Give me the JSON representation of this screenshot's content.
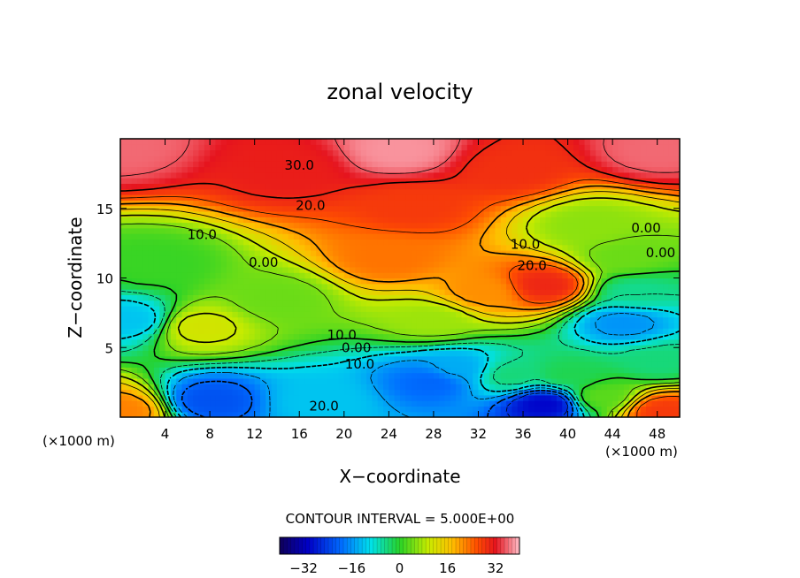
{
  "chart_data": {
    "type": "heatmap",
    "title": "zonal velocity",
    "xlabel": "X−coordinate",
    "ylabel": "Z−coordinate",
    "x_unit_left": "(×1000 m)",
    "x_unit_right": "(×1000 m)",
    "xlim": [
      0,
      50
    ],
    "ylim": [
      0,
      20
    ],
    "x_ticks": [
      4,
      8,
      12,
      16,
      20,
      24,
      28,
      32,
      36,
      40,
      44,
      48
    ],
    "y_ticks": [
      5,
      10,
      15
    ],
    "contour_interval_text": "CONTOUR INTERVAL = 5.000E+00",
    "contour_labels": [
      {
        "text": "30.0",
        "x": 16,
        "z": 18.1
      },
      {
        "text": "20.0",
        "x": 17,
        "z": 15.2
      },
      {
        "text": "10.0",
        "x": 7.3,
        "z": 13.1
      },
      {
        "text": "0.00",
        "x": 12.8,
        "z": 11.1
      },
      {
        "text": "0.00",
        "x": 47,
        "z": 13.6
      },
      {
        "text": "0.00",
        "x": 48.3,
        "z": 11.8
      },
      {
        "text": "10.0",
        "x": 36.2,
        "z": 12.4
      },
      {
        "text": "20.0",
        "x": 36.8,
        "z": 10.9
      },
      {
        "text": "10.0",
        "x": 19.8,
        "z": 5.9
      },
      {
        "text": "0.00",
        "x": 21.1,
        "z": 5.0
      },
      {
        "text": "10.0",
        "x": 21.4,
        "z": 3.8
      },
      {
        "text": "20.0",
        "x": 18.2,
        "z": 0.8
      }
    ],
    "colorbar": {
      "min": -40,
      "max": 40,
      "ticks": [
        -32,
        -16,
        0,
        16,
        32
      ],
      "tick_labels": [
        "−32",
        "−16",
        "0",
        "16",
        "32"
      ]
    },
    "field_features": [
      {
        "x": 25,
        "z": 19.2,
        "value": 38
      },
      {
        "x": 0,
        "z": 19.5,
        "value": 36
      },
      {
        "x": 48,
        "z": 19.2,
        "value": 36
      },
      {
        "x": 15,
        "z": 17.8,
        "value": 31
      },
      {
        "x": 35,
        "z": 17.8,
        "value": 29
      },
      {
        "x": 26,
        "z": 15.2,
        "value": 28
      },
      {
        "x": 24,
        "z": 11.5,
        "value": 23
      },
      {
        "x": 32.5,
        "z": 9.0,
        "value": 21
      },
      {
        "x": 38,
        "z": 9.5,
        "value": 30
      },
      {
        "x": 42,
        "z": 13.8,
        "value": 6
      },
      {
        "x": 7,
        "z": 6.5,
        "value": 11
      },
      {
        "x": 3,
        "z": 11.0,
        "value": 1
      },
      {
        "x": 1,
        "z": 7.0,
        "value": -12
      },
      {
        "x": 14,
        "z": 8.5,
        "value": 4
      },
      {
        "x": 28,
        "z": 7.0,
        "value": 7
      },
      {
        "x": 30,
        "z": 3.5,
        "value": -14
      },
      {
        "x": 28,
        "z": 2.6,
        "value": -20
      },
      {
        "x": 8,
        "z": 1.2,
        "value": -22
      },
      {
        "x": 18,
        "z": 1.2,
        "value": -12
      },
      {
        "x": 38,
        "z": 1.0,
        "value": -30
      },
      {
        "x": 45,
        "z": 6.8,
        "value": -16
      },
      {
        "x": 48,
        "z": 4.0,
        "value": -4
      },
      {
        "x": 43,
        "z": 1.5,
        "value": 3
      },
      {
        "x": 48.5,
        "z": 0.5,
        "value": 28
      },
      {
        "x": 0.2,
        "z": 0.5,
        "value": 22
      },
      {
        "x": 35,
        "z": 3.0,
        "value": -4
      },
      {
        "x": 40,
        "z": 3.0,
        "value": -2
      },
      {
        "x": 45,
        "z": 11.5,
        "value": 4
      },
      {
        "x": 46,
        "z": 9.0,
        "value": -5
      }
    ]
  }
}
